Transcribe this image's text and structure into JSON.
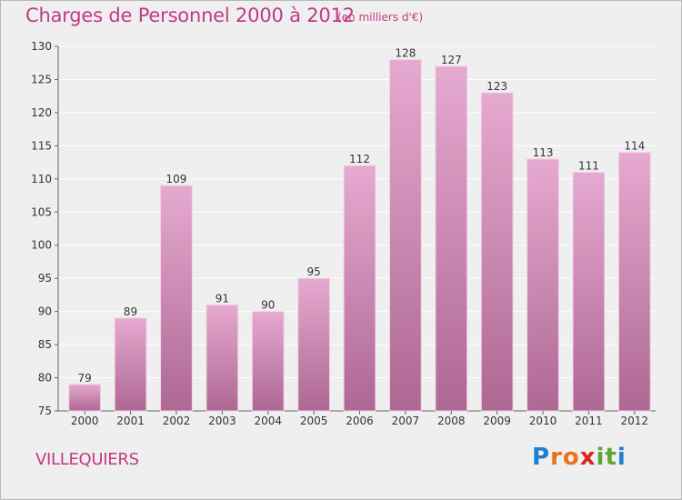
{
  "title": "Charges de Personnel 2000 à 2012",
  "subtitle": "(en milliers d'€)",
  "city": "VILLEQUIERS",
  "logo": {
    "letters": [
      "P",
      "r",
      "o",
      "x",
      "i",
      "t",
      "i"
    ],
    "colors": [
      "#1f7fd0",
      "#e8731a",
      "#e8731a",
      "#d6261f",
      "#5aa832",
      "#5aa832",
      "#1f7fd0"
    ]
  },
  "colors": {
    "accent": "#c23a84",
    "bar_top": "#e6a9d0",
    "bar_bottom": "#ad6893",
    "background": "#efefef",
    "grid": "#ffffff"
  },
  "chart_data": {
    "type": "bar",
    "categories": [
      "2000",
      "2001",
      "2002",
      "2003",
      "2004",
      "2005",
      "2006",
      "2007",
      "2008",
      "2009",
      "2010",
      "2011",
      "2012"
    ],
    "values": [
      79,
      89,
      109,
      91,
      90,
      95,
      112,
      128,
      127,
      123,
      113,
      111,
      114
    ],
    "title": "Charges de Personnel 2000 à 2012",
    "xlabel": "",
    "ylabel": "",
    "ylim": [
      75,
      130
    ],
    "yticks": [
      75,
      80,
      85,
      90,
      95,
      100,
      105,
      110,
      115,
      120,
      125,
      130
    ],
    "grid": true,
    "legend": "none"
  }
}
